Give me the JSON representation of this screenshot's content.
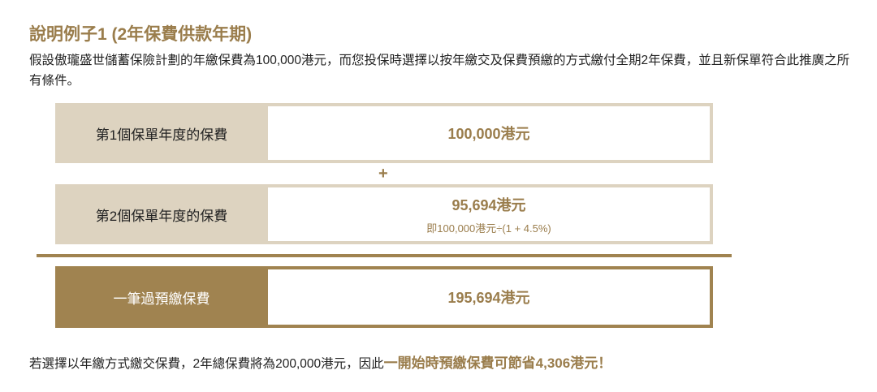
{
  "title": "說明例子1 (2年保費供款年期)",
  "intro": "假設傲瓏盛世儲蓄保險計劃的年繳保費為100,000港元，而您投保時選擇以按年繳交及保費預繳的方式繳付全期2年保費，並且新保單符合此推廣之所有條件。",
  "rows": [
    {
      "label": "第1個保單年度的保費",
      "value": "100,000港元"
    },
    {
      "label": "第2個保單年度的保費",
      "value": "95,694港元",
      "note": "即100,000港元÷(1 + 4.5%)"
    },
    {
      "label": "一筆過預繳保費",
      "value": "195,694港元"
    }
  ],
  "plus": "+",
  "footer": {
    "text": "若選擇以年繳方式繳交保費，2年總保費將為200,000港元，因此",
    "highlight": "一開始時預繳保費可節省4,306港元！"
  },
  "colors": {
    "gold": "#a08350",
    "beige": "#ddd3c0"
  }
}
